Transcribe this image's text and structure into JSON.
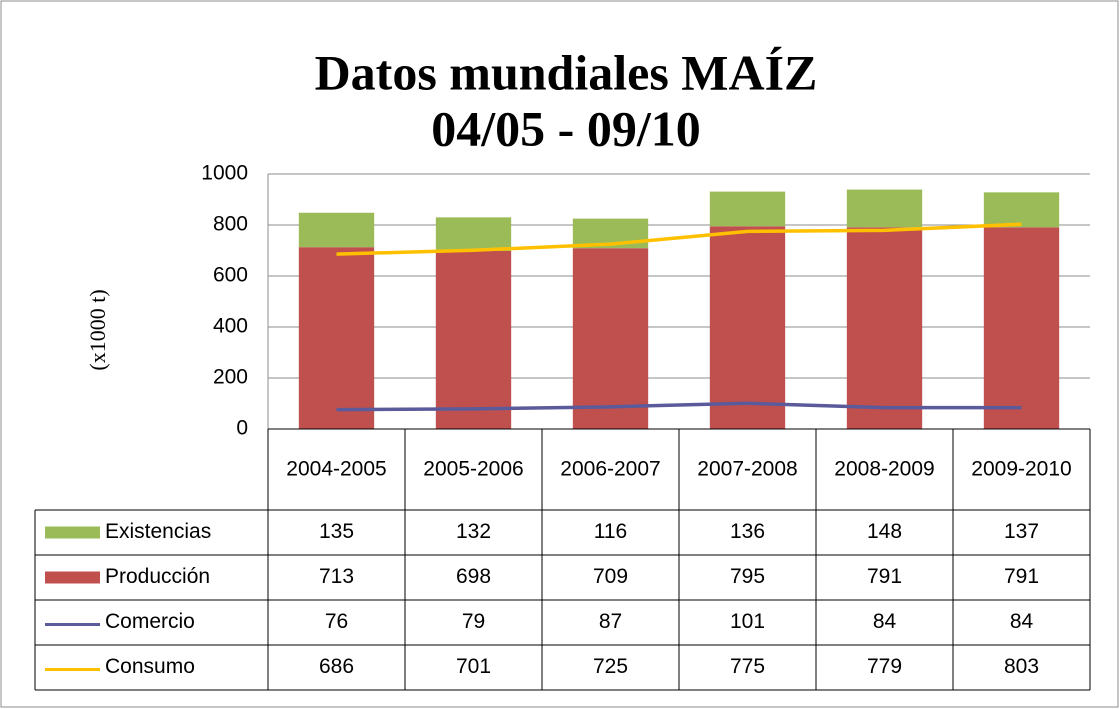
{
  "chart_data": {
    "type": "combo",
    "title": [
      "Datos mundiales MAÍZ",
      "04/05 - 09/10"
    ],
    "y_label": "(x1000 t)",
    "categories": [
      "2004-2005",
      "2005-2006",
      "2006-2007",
      "2007-2008",
      "2008-2009",
      "2009-2010"
    ],
    "series": [
      {
        "name": "Existencias",
        "type": "bar",
        "color": "#9bbb59",
        "values": [
          135,
          132,
          116,
          136,
          148,
          137
        ]
      },
      {
        "name": "Producción",
        "type": "bar",
        "color": "#c0504d",
        "values": [
          713,
          698,
          709,
          795,
          791,
          791
        ]
      },
      {
        "name": "Comercio",
        "type": "line",
        "color": "#5b5b9b",
        "values": [
          76,
          79,
          87,
          101,
          84,
          84
        ]
      },
      {
        "name": "Consumo",
        "type": "line",
        "color": "#ffc000",
        "values": [
          686,
          701,
          725,
          775,
          779,
          803
        ]
      }
    ],
    "stacked": true,
    "ylim": [
      0,
      1000
    ],
    "yticks": [
      0,
      200,
      400,
      600,
      800,
      1000
    ],
    "grid": true
  }
}
